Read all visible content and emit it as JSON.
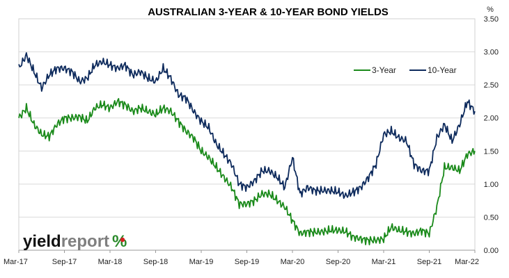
{
  "chart_data": {
    "type": "line",
    "title": "AUSTRALIAN 3-YEAR & 10-YEAR BOND YIELDS",
    "y_unit": "%",
    "ylim": [
      0,
      3.5
    ],
    "y_ticks": [
      "0.00",
      "0.50",
      "1.00",
      "1.50",
      "2.00",
      "2.50",
      "3.00",
      "3.50"
    ],
    "x_ticks": [
      "Mar-17",
      "Sep-17",
      "Mar-18",
      "Sep-18",
      "Mar-19",
      "Sep-19",
      "Mar-20",
      "Sep-20",
      "Mar-21",
      "Sep-21",
      "Mar-22"
    ],
    "grid": true,
    "legend_position": "top-right",
    "x": [
      "2017-03",
      "2017-04",
      "2017-05",
      "2017-06",
      "2017-07",
      "2017-08",
      "2017-09",
      "2017-10",
      "2017-11",
      "2017-12",
      "2018-01",
      "2018-02",
      "2018-03",
      "2018-04",
      "2018-05",
      "2018-06",
      "2018-07",
      "2018-08",
      "2018-09",
      "2018-10",
      "2018-11",
      "2018-12",
      "2019-01",
      "2019-02",
      "2019-03",
      "2019-04",
      "2019-05",
      "2019-06",
      "2019-07",
      "2019-08",
      "2019-09",
      "2019-10",
      "2019-11",
      "2019-12",
      "2020-01",
      "2020-02",
      "2020-03",
      "2020-04",
      "2020-05",
      "2020-06",
      "2020-07",
      "2020-08",
      "2020-09",
      "2020-10",
      "2020-11",
      "2020-12",
      "2021-01",
      "2021-02",
      "2021-03",
      "2021-04",
      "2021-05",
      "2021-06",
      "2021-07",
      "2021-08",
      "2021-09",
      "2021-10",
      "2021-11",
      "2021-12",
      "2022-01",
      "2022-02",
      "2022-03"
    ],
    "series": [
      {
        "name": "3-Year",
        "color": "#1a8a1a",
        "values": [
          2.0,
          2.15,
          1.9,
          1.75,
          1.72,
          1.9,
          2.0,
          2.0,
          2.02,
          1.95,
          2.15,
          2.2,
          2.15,
          2.25,
          2.2,
          2.1,
          2.15,
          2.1,
          2.05,
          2.15,
          2.1,
          1.95,
          1.8,
          1.7,
          1.5,
          1.4,
          1.25,
          1.1,
          0.95,
          0.7,
          0.7,
          0.75,
          0.85,
          0.85,
          0.75,
          0.65,
          0.45,
          0.25,
          0.28,
          0.27,
          0.28,
          0.3,
          0.3,
          0.28,
          0.2,
          0.17,
          0.15,
          0.15,
          0.17,
          0.35,
          0.3,
          0.28,
          0.25,
          0.3,
          0.25,
          0.65,
          1.25,
          1.25,
          1.2,
          1.45,
          1.5
        ]
      },
      {
        "name": "10-Year",
        "color": "#0d2a5c",
        "values": [
          2.75,
          2.95,
          2.7,
          2.45,
          2.65,
          2.75,
          2.75,
          2.7,
          2.55,
          2.6,
          2.8,
          2.85,
          2.8,
          2.75,
          2.8,
          2.65,
          2.7,
          2.6,
          2.55,
          2.75,
          2.6,
          2.35,
          2.3,
          2.1,
          1.95,
          1.85,
          1.6,
          1.45,
          1.3,
          1.0,
          0.95,
          1.05,
          1.2,
          1.2,
          1.1,
          0.95,
          1.4,
          0.85,
          0.95,
          0.9,
          0.9,
          0.9,
          0.88,
          0.82,
          0.88,
          0.95,
          1.1,
          1.3,
          1.75,
          1.8,
          1.7,
          1.65,
          1.3,
          1.2,
          1.2,
          1.7,
          1.9,
          1.65,
          1.9,
          2.25,
          2.1
        ]
      }
    ]
  },
  "logo": {
    "word1": "yield",
    "word2": "report",
    "symbol": "%"
  }
}
